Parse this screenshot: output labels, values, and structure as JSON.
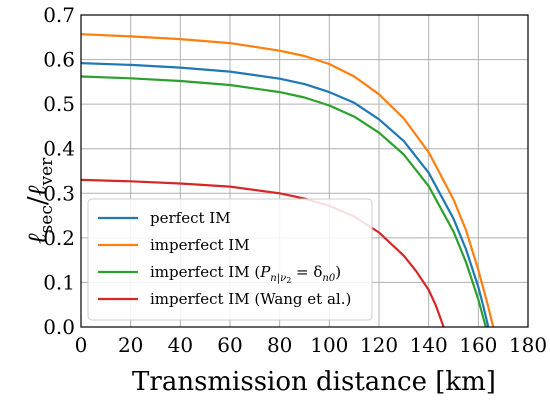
{
  "chart_data": {
    "type": "line",
    "title": "",
    "xlabel": "Transmission distance [km]",
    "ylabel": "ℓsec/ℓver",
    "xlim": [
      0,
      180
    ],
    "ylim": [
      0,
      0.7
    ],
    "xticks": [
      0,
      20,
      40,
      60,
      80,
      100,
      120,
      140,
      160,
      180
    ],
    "yticks": [
      0.0,
      0.1,
      0.2,
      0.3,
      0.4,
      0.5,
      0.6,
      0.7
    ],
    "xtick_labels": [
      "0",
      "20",
      "40",
      "60",
      "80",
      "100",
      "120",
      "140",
      "160",
      "180"
    ],
    "ytick_labels": [
      "0.0",
      "0.1",
      "0.2",
      "0.3",
      "0.4",
      "0.5",
      "0.6",
      "0.7"
    ],
    "grid": true,
    "legend_position": "lower-left",
    "series": [
      {
        "name": "perfect IM",
        "color": "#1f77b4",
        "x": [
          0,
          20,
          40,
          60,
          80,
          90,
          100,
          110,
          120,
          130,
          140,
          150,
          155,
          160,
          162,
          164
        ],
        "y": [
          0.592,
          0.588,
          0.582,
          0.573,
          0.557,
          0.545,
          0.527,
          0.503,
          0.466,
          0.417,
          0.346,
          0.243,
          0.175,
          0.09,
          0.047,
          0.0
        ]
      },
      {
        "name": "imperfect IM",
        "color": "#ff7f0e",
        "x": [
          0,
          20,
          40,
          60,
          80,
          90,
          100,
          110,
          120,
          130,
          140,
          150,
          155,
          160,
          164,
          166
        ],
        "y": [
          0.657,
          0.652,
          0.646,
          0.637,
          0.62,
          0.608,
          0.59,
          0.562,
          0.522,
          0.468,
          0.392,
          0.286,
          0.218,
          0.128,
          0.045,
          0.0
        ]
      },
      {
        "name": "imperfect IM (P_{n|ν2} = δ_{n0})",
        "color": "#2ca02c",
        "x": [
          0,
          20,
          40,
          60,
          80,
          90,
          100,
          110,
          120,
          130,
          140,
          150,
          155,
          160,
          163
        ],
        "y": [
          0.562,
          0.558,
          0.552,
          0.543,
          0.527,
          0.515,
          0.497,
          0.472,
          0.436,
          0.387,
          0.316,
          0.214,
          0.146,
          0.062,
          0.0
        ]
      },
      {
        "name": "imperfect IM (Wang et al.)",
        "color": "#d62728",
        "x": [
          0,
          20,
          40,
          60,
          80,
          90,
          100,
          110,
          120,
          130,
          135,
          140,
          143,
          146
        ],
        "y": [
          0.33,
          0.327,
          0.322,
          0.315,
          0.3,
          0.288,
          0.272,
          0.248,
          0.212,
          0.16,
          0.125,
          0.083,
          0.047,
          0.0
        ]
      }
    ]
  },
  "legend": {
    "entries": [
      {
        "text": "perfect IM"
      },
      {
        "text": "imperfect IM"
      },
      {
        "pre": "imperfect IM (",
        "sym": "P",
        "sub": "n|ν",
        "subsub": "2",
        "eq": " = δ",
        "sub2": "n0",
        "post": ")"
      },
      {
        "text": "imperfect IM (Wang et al.)"
      }
    ]
  },
  "ylabel_parts": {
    "l1": "ℓ",
    "s1": "sec",
    "slash": "/",
    "l2": "ℓ",
    "s2": "ver"
  }
}
